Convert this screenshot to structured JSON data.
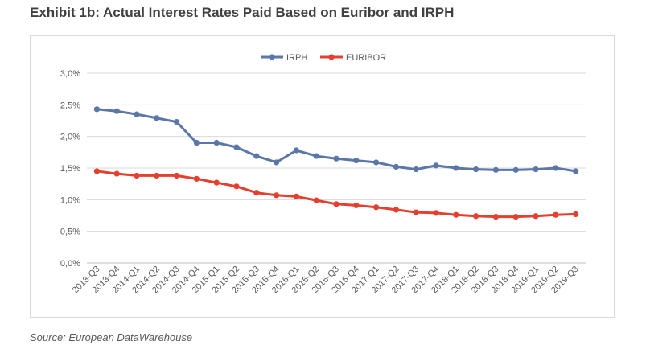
{
  "title": "Exhibit 1b: Actual Interest Rates Paid Based on Euribor and IRPH",
  "source": "Source: European DataWarehouse",
  "chart_data": {
    "type": "line",
    "title": "",
    "xlabel": "",
    "ylabel": "",
    "categories": [
      "2013-Q3",
      "2013-Q4",
      "2014-Q1",
      "2014-Q2",
      "2014-Q3",
      "2014-Q4",
      "2015-Q1",
      "2015-Q2",
      "2015-Q3",
      "2015-Q4",
      "2016-Q1",
      "2016-Q2",
      "2016-Q3",
      "2016-Q4",
      "2017-Q1",
      "2017-Q2",
      "2017-Q3",
      "2017-Q4",
      "2018-Q1",
      "2018-Q2",
      "2018-Q3",
      "2018-Q4",
      "2019-Q1",
      "2019-Q2",
      "2019-Q3"
    ],
    "ylim": [
      0,
      3.0
    ],
    "yticks": [
      0,
      0.5,
      1.0,
      1.5,
      2.0,
      2.5,
      3.0
    ],
    "ytick_labels": [
      "0,0%",
      "0,5%",
      "1,0%",
      "1,5%",
      "2,0%",
      "2,5%",
      "3,0%"
    ],
    "grid": true,
    "legend_position": "top-center",
    "series": [
      {
        "name": "IRPH",
        "color": "#5b76a8",
        "values": [
          2.43,
          2.4,
          2.35,
          2.29,
          2.23,
          1.9,
          1.9,
          1.83,
          1.69,
          1.59,
          1.78,
          1.69,
          1.65,
          1.62,
          1.59,
          1.52,
          1.48,
          1.54,
          1.5,
          1.48,
          1.47,
          1.47,
          1.48,
          1.5,
          1.45
        ]
      },
      {
        "name": "EURIBOR",
        "color": "#e3402f",
        "values": [
          1.45,
          1.41,
          1.38,
          1.38,
          1.38,
          1.33,
          1.27,
          1.21,
          1.11,
          1.07,
          1.05,
          0.99,
          0.93,
          0.91,
          0.88,
          0.84,
          0.8,
          0.79,
          0.76,
          0.74,
          0.73,
          0.73,
          0.74,
          0.76,
          0.77
        ]
      }
    ]
  }
}
